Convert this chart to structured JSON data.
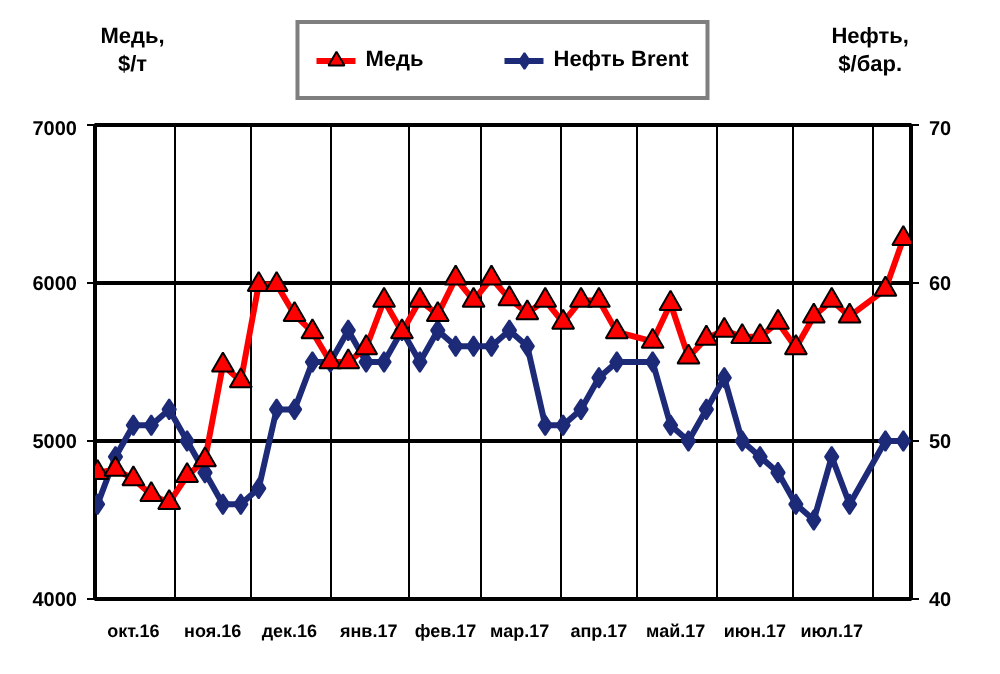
{
  "chart_data": {
    "type": "line",
    "ylabel": "Медь,\n$/т",
    "y2label": "Нефть,\n$/бар.",
    "x": [
      "2016-10-02",
      "2016-10-09",
      "2016-10-16",
      "2016-10-23",
      "2016-10-30",
      "2016-11-06",
      "2016-11-13",
      "2016-11-20",
      "2016-11-27",
      "2016-12-04",
      "2016-12-11",
      "2016-12-18",
      "2016-12-25",
      "2017-01-01",
      "2017-01-08",
      "2017-01-15",
      "2017-01-22",
      "2017-01-29",
      "2017-02-05",
      "2017-02-12",
      "2017-02-19",
      "2017-02-26",
      "2017-03-05",
      "2017-03-12",
      "2017-03-19",
      "2017-03-26",
      "2017-04-02",
      "2017-04-09",
      "2017-04-16",
      "2017-04-23",
      "2017-05-07",
      "2017-05-14",
      "2017-05-21",
      "2017-05-28",
      "2017-06-04",
      "2017-06-11",
      "2017-06-18",
      "2017-06-25",
      "2017-07-02",
      "2017-07-09",
      "2017-07-16",
      "2017-07-23",
      "2017-08-06",
      "2017-08-13"
    ],
    "series": [
      {
        "name": "Медь",
        "color": "#ff0000",
        "marker": "triangle",
        "values": [
          4800,
          4820,
          4760,
          4660,
          4610,
          4780,
          4880,
          5480,
          5380,
          5990,
          5990,
          5800,
          5690,
          5500,
          5500,
          5590,
          5890,
          5690,
          5890,
          5800,
          6030,
          5890,
          6030,
          5900,
          5810,
          5890,
          5750,
          5890,
          5890,
          5690,
          5630,
          5870,
          5530,
          5650,
          5700,
          5660,
          5660,
          5750,
          5590,
          5790,
          5890,
          5790,
          5960,
          6280
        ]
      },
      {
        "name": "Нефть Brent",
        "color": "#1c2a78",
        "axis": "y2",
        "marker": "diamond",
        "values": [
          46,
          49,
          51,
          51,
          52,
          50,
          48,
          46,
          46,
          47,
          52,
          52,
          55,
          55,
          57,
          55,
          55,
          57,
          55,
          57,
          56,
          56,
          56,
          57,
          56,
          51,
          51,
          52,
          54,
          55,
          55,
          51,
          50,
          52,
          54,
          50,
          49,
          48,
          46,
          45,
          49,
          46,
          50,
          50
        ]
      }
    ],
    "xlim": [
      "2016-10-01",
      "2017-08-16"
    ],
    "xticks": [
      {
        "value": "2016-10-01",
        "label": null
      },
      {
        "value": "2016-10-16",
        "label": "окт.16"
      },
      {
        "value": "2016-11-01",
        "label": null
      },
      {
        "value": "2016-11-16",
        "label": "ноя.16"
      },
      {
        "value": "2016-12-01",
        "label": null
      },
      {
        "value": "2016-12-16",
        "label": "дек.16"
      },
      {
        "value": "2017-01-01",
        "label": null
      },
      {
        "value": "2017-01-16",
        "label": "янв.17"
      },
      {
        "value": "2017-02-01",
        "label": null
      },
      {
        "value": "2017-02-15",
        "label": "фев.17"
      },
      {
        "value": "2017-03-01",
        "label": null
      },
      {
        "value": "2017-03-16",
        "label": "мар.17"
      },
      {
        "value": "2017-04-01",
        "label": null
      },
      {
        "value": "2017-04-16",
        "label": "апр.17"
      },
      {
        "value": "2017-05-01",
        "label": null
      },
      {
        "value": "2017-05-16",
        "label": "май.17"
      },
      {
        "value": "2017-06-01",
        "label": null
      },
      {
        "value": "2017-06-16",
        "label": "июн.17"
      },
      {
        "value": "2017-07-01",
        "label": null
      },
      {
        "value": "2017-07-16",
        "label": "июл.17"
      },
      {
        "value": "2017-08-01",
        "label": null
      }
    ],
    "ylim": [
      4000,
      7000
    ],
    "yticks": [
      4000,
      5000,
      6000,
      7000
    ],
    "y2lim": [
      40,
      70
    ],
    "y2ticks": [
      40,
      50,
      60,
      70
    ],
    "grid": true,
    "legend": "top",
    "line_style": "solid"
  }
}
